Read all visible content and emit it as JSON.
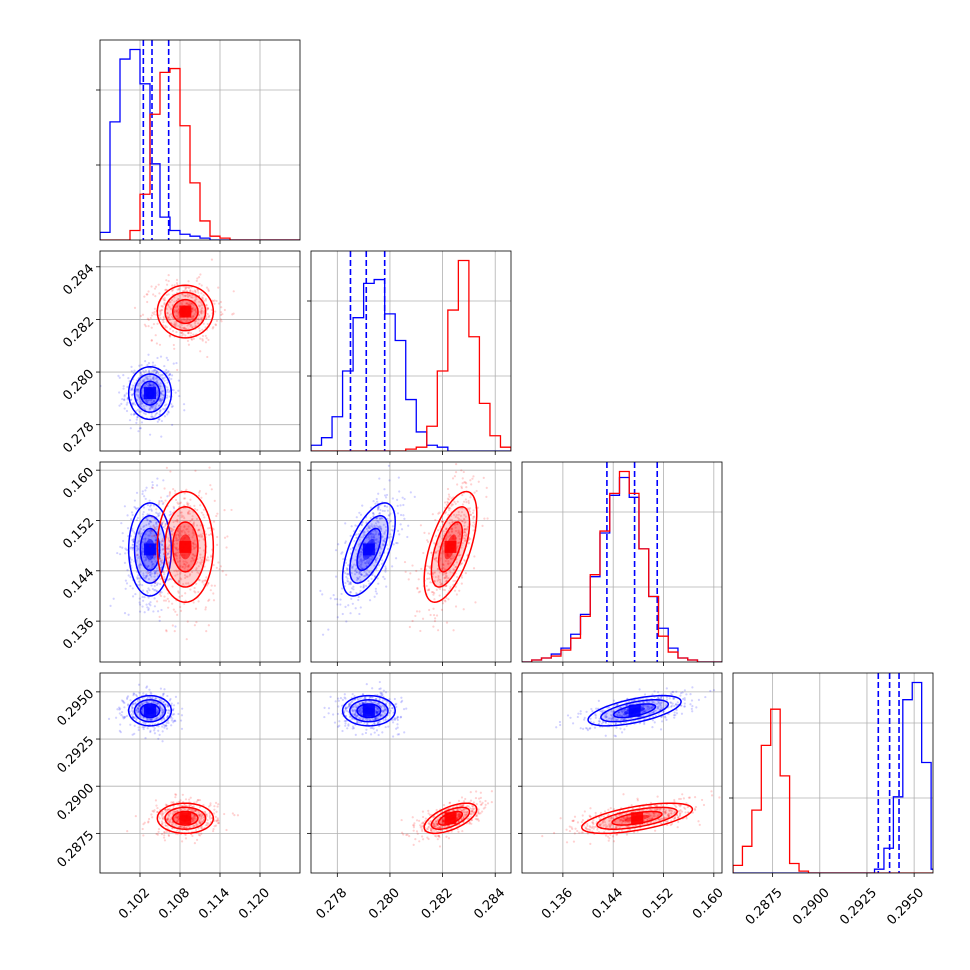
{
  "chart_data": {
    "type": "corner",
    "grid": true,
    "params": [
      {
        "range": [
          0.096,
          0.126
        ],
        "ticks": [
          "0.102",
          "0.108",
          "0.114",
          "0.120"
        ]
      },
      {
        "range": [
          0.277,
          0.2846
        ],
        "ticks": [
          "0.278",
          "0.280",
          "0.282",
          "0.284"
        ]
      },
      {
        "range": [
          0.1295,
          0.1613
        ],
        "ticks": [
          "0.136",
          "0.144",
          "0.152",
          "0.160"
        ]
      },
      {
        "range": [
          0.2854,
          0.296
        ],
        "ticks": [
          "0.2875",
          "0.2900",
          "0.2925",
          "0.2950"
        ]
      }
    ],
    "series": [
      {
        "color": "#0000ff",
        "mean": [
          0.1035,
          0.2792,
          0.1474,
          0.294
        ],
        "sd": [
          0.0016,
          0.0005,
          0.0037,
          0.0004
        ],
        "corr": [
          [
            1,
            0.0,
            0.0,
            0.0
          ],
          [
            0.0,
            1,
            0.6,
            0.0
          ],
          [
            0.0,
            0.6,
            1,
            0.6
          ],
          [
            0.0,
            0.0,
            0.6,
            1
          ]
        ],
        "quantiles": [
          [
            0.1025,
            0.1038,
            0.1063
          ],
          [
            0.2785,
            0.2791,
            0.2798
          ],
          [
            0.143,
            0.1474,
            0.151
          ],
          [
            0.2931,
            0.2937,
            0.2942
          ]
        ],
        "hists": [
          {
            "edges_start": 0.096,
            "bin": 0.0015,
            "counts": [
              0.04,
              0.62,
              0.95,
              1.0,
              0.82,
              0.4,
              0.12,
              0.05,
              0.03,
              0.02,
              0.01,
              0.0,
              0.0,
              0.0,
              0.0,
              0.0,
              0.0,
              0.0,
              0.0,
              0.0
            ]
          },
          {
            "edges_start": 0.277,
            "bin": 0.0004,
            "counts": [
              0.03,
              0.07,
              0.18,
              0.42,
              0.7,
              0.88,
              0.9,
              0.72,
              0.58,
              0.27,
              0.1,
              0.03,
              0.02,
              0.0,
              0.0,
              0.0,
              0.0,
              0.0,
              0.0
            ]
          },
          {
            "edges_start": 0.1295,
            "bin": 0.00155,
            "counts": [
              0.0,
              0.01,
              0.02,
              0.04,
              0.07,
              0.14,
              0.24,
              0.43,
              0.65,
              0.84,
              0.93,
              0.83,
              0.57,
              0.33,
              0.17,
              0.07,
              0.02,
              0.01,
              0.0,
              0.0,
              0.0
            ]
          },
          {
            "edges_start": 0.2854,
            "bin": 0.0005,
            "counts": [
              0.0,
              0.0,
              0.0,
              0.0,
              0.0,
              0.0,
              0.0,
              0.0,
              0.0,
              0.0,
              0.0,
              0.0,
              0.0,
              0.0,
              0.0,
              0.02,
              0.13,
              0.4,
              0.91,
              1.0,
              0.58,
              0.02
            ]
          }
        ]
      },
      {
        "color": "#ff0000",
        "mean": [
          0.1088,
          0.2823,
          0.1478,
          0.2883
        ],
        "sd": [
          0.0021,
          0.0005,
          0.0044,
          0.0004
        ],
        "corr": [
          [
            1,
            0.0,
            0.0,
            0.0
          ],
          [
            0.0,
            1,
            0.6,
            0.6
          ],
          [
            0.0,
            0.6,
            1,
            0.6
          ],
          [
            0.0,
            0.6,
            0.6,
            1
          ]
        ],
        "quantiles": [],
        "hists": [
          {
            "edges_start": 0.096,
            "bin": 0.0015,
            "counts": [
              0.0,
              0.0,
              0.0,
              0.05,
              0.24,
              0.66,
              0.88,
              0.9,
              0.6,
              0.3,
              0.1,
              0.02,
              0.01,
              0.0,
              0.0,
              0.0,
              0.0,
              0.0,
              0.0,
              0.0
            ]
          },
          {
            "edges_start": 0.277,
            "bin": 0.0004,
            "counts": [
              0.0,
              0.0,
              0.0,
              0.0,
              0.0,
              0.0,
              0.0,
              0.0,
              0.0,
              0.01,
              0.02,
              0.13,
              0.42,
              0.74,
              1.0,
              0.6,
              0.25,
              0.08,
              0.02
            ]
          },
          {
            "edges_start": 0.1295,
            "bin": 0.00155,
            "counts": [
              0.0,
              0.01,
              0.02,
              0.03,
              0.06,
              0.12,
              0.23,
              0.44,
              0.66,
              0.85,
              0.96,
              0.85,
              0.57,
              0.33,
              0.13,
              0.05,
              0.02,
              0.01,
              0.0,
              0.0,
              0.0
            ]
          },
          {
            "edges_start": 0.2854,
            "bin": 0.0005,
            "counts": [
              0.04,
              0.14,
              0.33,
              0.67,
              0.86,
              0.51,
              0.05,
              0.01,
              0.0,
              0.0,
              0.0,
              0.0,
              0.0,
              0.0,
              0.0,
              0.0,
              0.0,
              0.0,
              0.0,
              0.0,
              0.0,
              0.0
            ]
          }
        ]
      }
    ]
  }
}
